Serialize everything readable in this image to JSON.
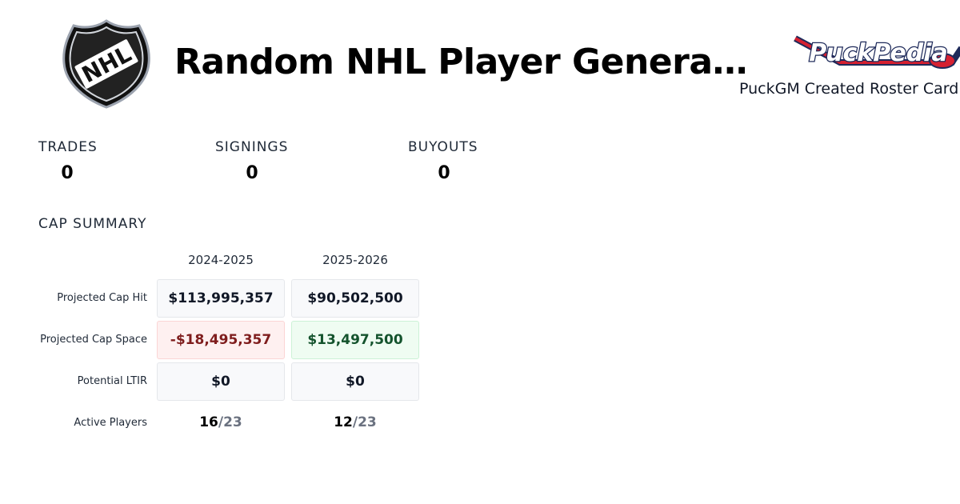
{
  "header": {
    "title": "Random NHL Player Genera…",
    "logo_text": "NHL",
    "brand_logo_text": "PuckPedia",
    "caption": "PuckGM Created Roster Card"
  },
  "stats": [
    {
      "label": "TRADES",
      "value": "0"
    },
    {
      "label": "SIGNINGS",
      "value": "0"
    },
    {
      "label": "BUYOUTS",
      "value": "0"
    }
  ],
  "cap_summary": {
    "title": "CAP SUMMARY",
    "seasons": [
      "2024-2025",
      "2025-2026"
    ],
    "rows": [
      {
        "label": "Projected Cap Hit",
        "values": [
          "$113,995,357",
          "$90,502,500"
        ]
      },
      {
        "label": "Projected Cap Space",
        "values": [
          "-$18,495,357",
          "$13,497,500"
        ]
      },
      {
        "label": "Potential LTIR",
        "values": [
          "$0",
          "$0"
        ]
      }
    ],
    "active_players": {
      "label": "Active Players",
      "values": [
        {
          "count": "16",
          "max": "/23"
        },
        {
          "count": "12",
          "max": "/23"
        }
      ]
    }
  },
  "colors": {
    "negative": "#7f1d1d",
    "positive": "#14532d",
    "brand_navy": "#1e2a5a",
    "brand_red": "#d62030"
  }
}
